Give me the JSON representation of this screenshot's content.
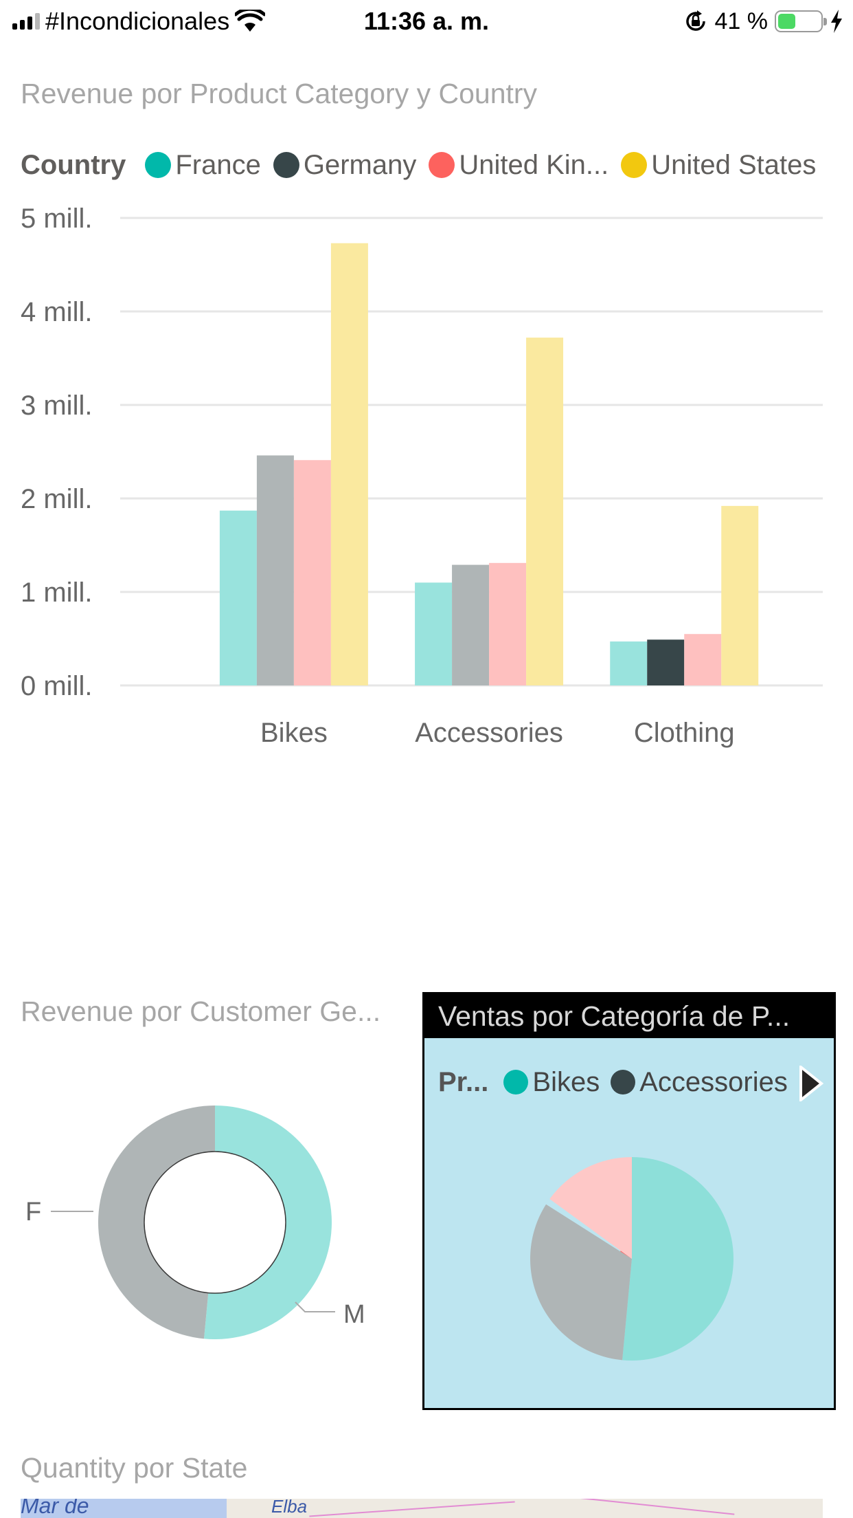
{
  "status_bar": {
    "carrier": "#Incondicionales",
    "time": "11:36 a. m.",
    "battery": "41 %",
    "battery_level": 0.41,
    "icons": [
      "signal-icon",
      "wifi-icon",
      "orientation-lock-icon",
      "battery-icon",
      "charging-icon"
    ]
  },
  "visuals": {
    "bar_title": "Revenue por Product Category y Country",
    "donut_title": "Revenue por Customer Ge...",
    "pie_title": "Ventas por Categoría de P...",
    "map_title": "Quantity por State"
  },
  "bar_legend": {
    "title": "Country",
    "items": [
      {
        "label": "France",
        "color": "#01b8aa"
      },
      {
        "label": "Germany",
        "color": "#374649"
      },
      {
        "label": "United Kin...",
        "color": "#fd625e"
      },
      {
        "label": "United States",
        "color": "#f2c80f"
      }
    ]
  },
  "pie_legend": {
    "title": "Pr...",
    "items": [
      {
        "label": "Bikes",
        "color": "#01b8aa"
      },
      {
        "label": "Accessories",
        "color": "#374649"
      }
    ],
    "next_icon": "chevron-right-icon"
  },
  "map": {
    "labels": [
      "Mar de",
      "Elba"
    ]
  },
  "chart_data": [
    {
      "type": "bar",
      "title": "Revenue por Product Category y Country",
      "legend_title": "Country",
      "categories": [
        "Bikes",
        "Accessories",
        "Clothing"
      ],
      "series": [
        {
          "name": "France",
          "color": "#01b8aa",
          "values": [
            1.87,
            1.1,
            0.47
          ]
        },
        {
          "name": "Germany",
          "color": "#374649",
          "values": [
            2.46,
            1.29,
            0.49
          ]
        },
        {
          "name": "United Kin...",
          "color": "#fd625e",
          "values": [
            2.41,
            1.31,
            0.55
          ]
        },
        {
          "name": "United States",
          "color": "#f2c80f",
          "values": [
            4.73,
            3.72,
            1.92
          ]
        }
      ],
      "highlighted_category": "Clothing",
      "ylim": [
        0,
        5
      ],
      "yticks": [
        "0 mill.",
        "1 mill.",
        "2 mill.",
        "3 mill.",
        "4 mill.",
        "5 mill."
      ],
      "grid": true,
      "legend": "top"
    },
    {
      "type": "pie",
      "subtype": "donut",
      "title": "Revenue por Customer Ge...",
      "labels": [
        "M",
        "F"
      ],
      "values": [
        51.5,
        48.5
      ],
      "colors": [
        "#01b8aa",
        "#374649"
      ]
    },
    {
      "type": "pie",
      "title": "Ventas por Categoría de P...",
      "legend_title": "Pr...",
      "labels": [
        "Bikes",
        "Accessories",
        "",
        ""
      ],
      "values": [
        51.5,
        32.5,
        1.0,
        15.0
      ],
      "colors": [
        "#01b8aa",
        "#374649",
        "#fd625e",
        "#f2c80f"
      ]
    }
  ]
}
